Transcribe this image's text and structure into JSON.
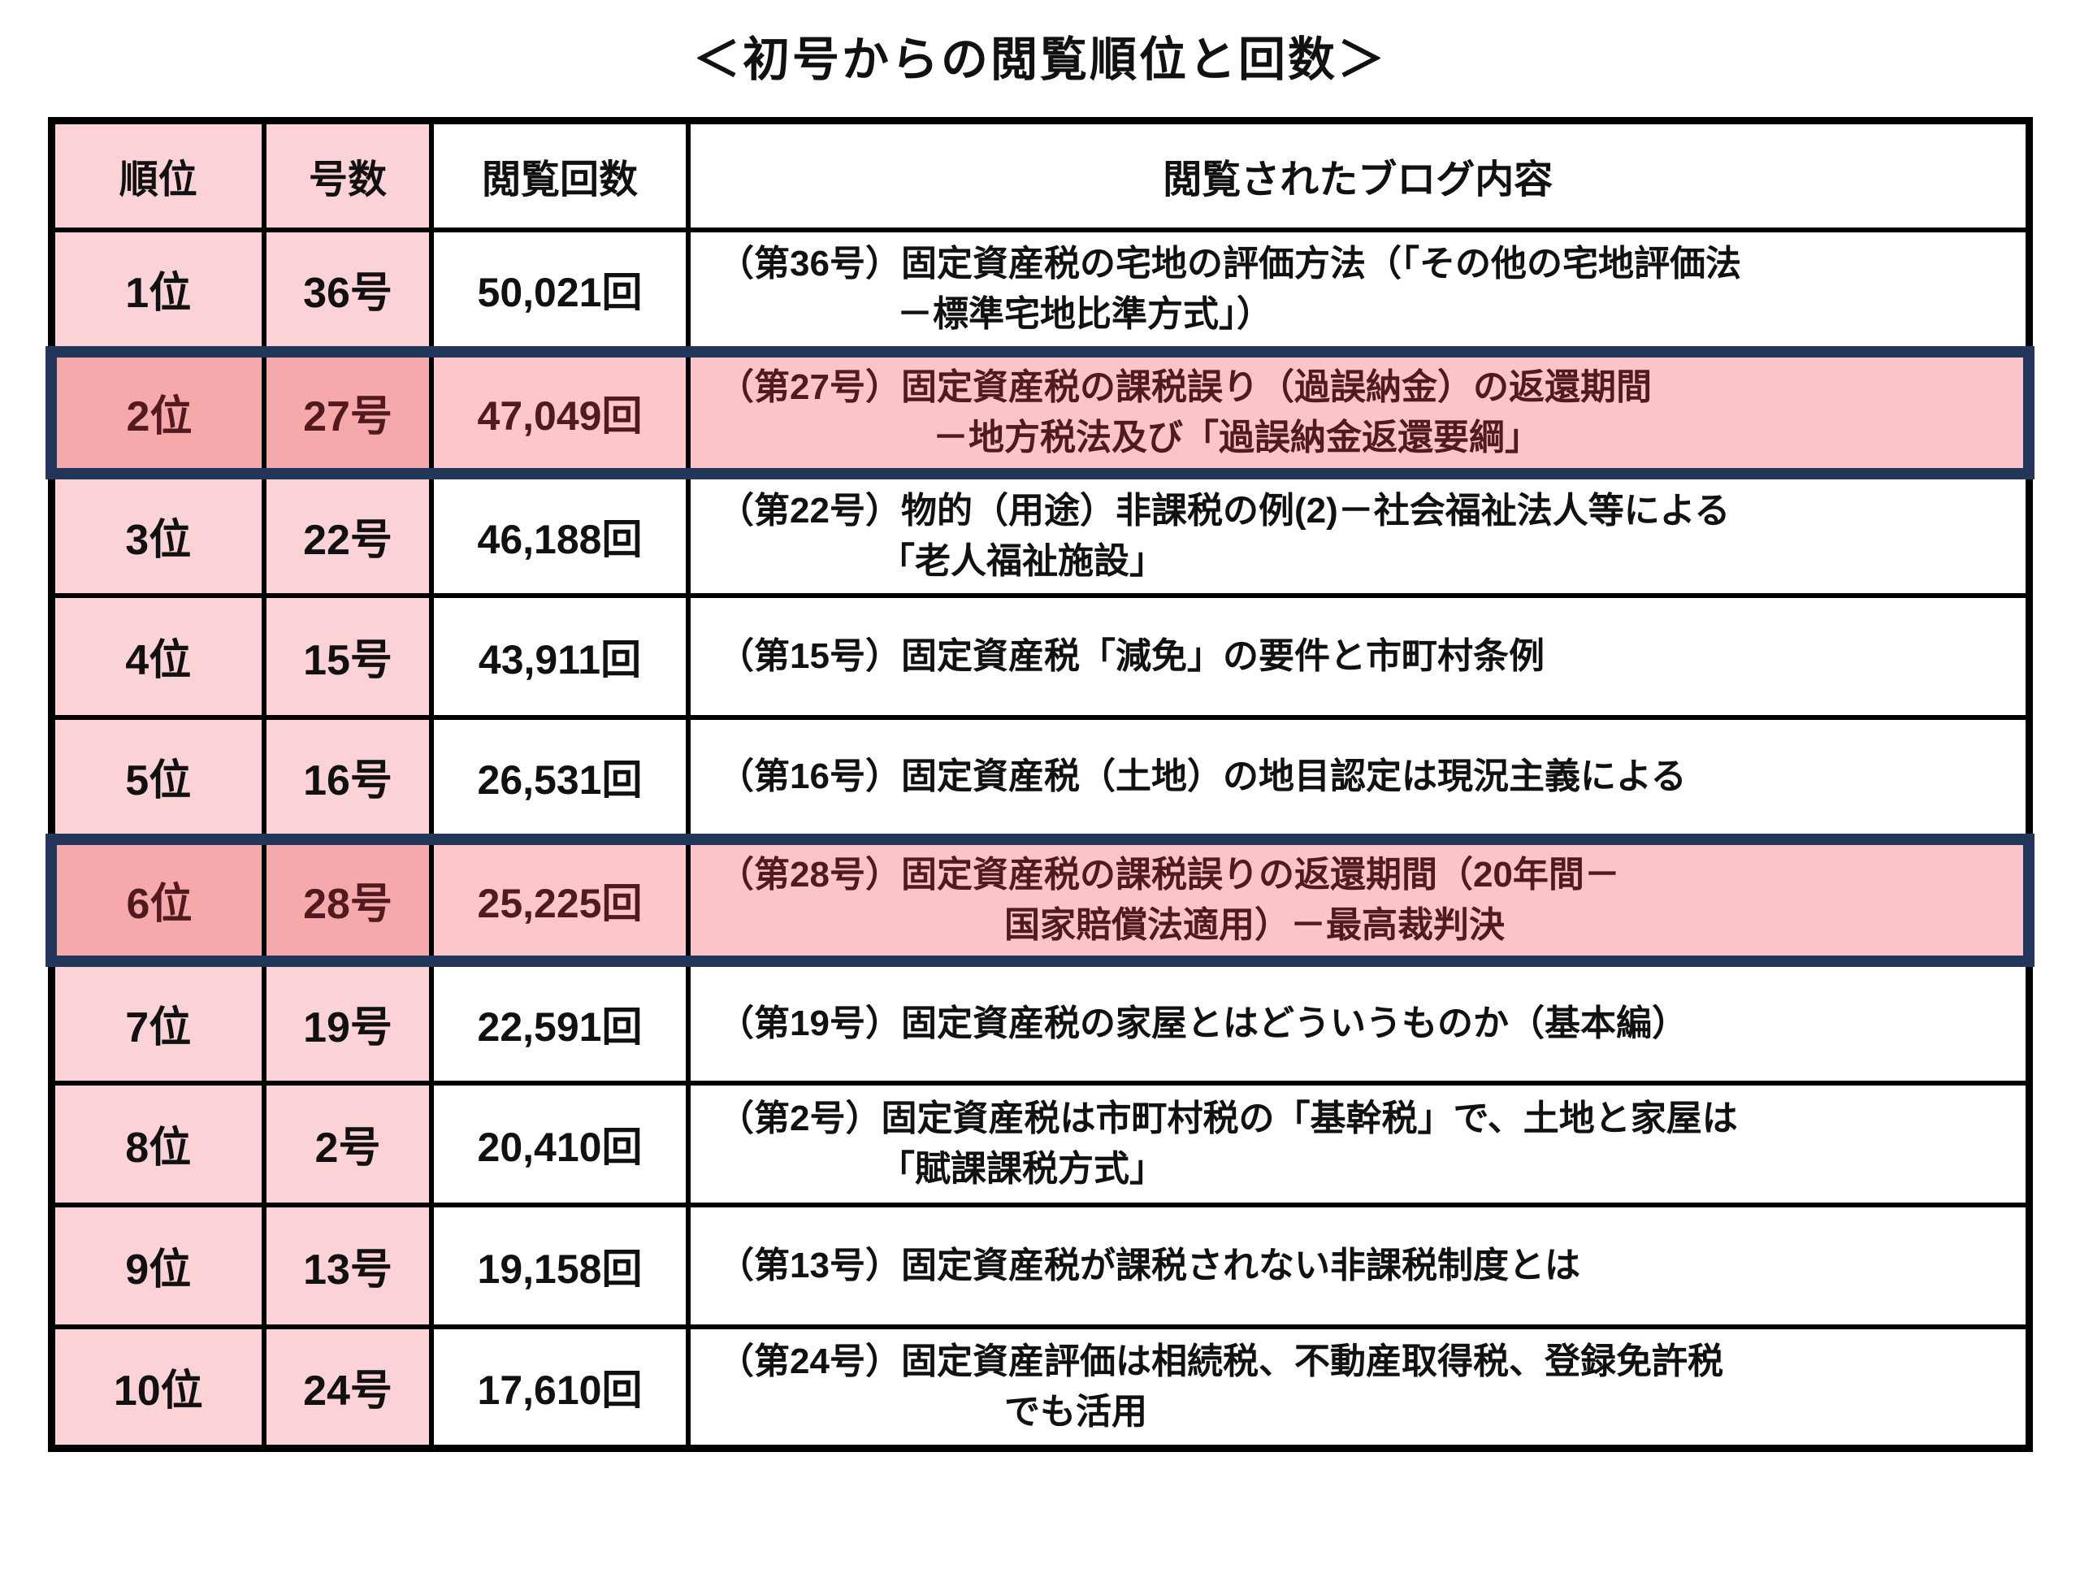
{
  "title": "＜初号からの閲覧順位と回数＞",
  "colors": {
    "pink_light": "#fbd3d6",
    "pink_strong": "#f6a9ab",
    "pink_highlight_bg": "#fac4c8",
    "highlight_border_navy": "#22365a",
    "highlight_text_maroon": "#521a1e",
    "grid_black": "#000000"
  },
  "table": {
    "headers": [
      "順位",
      "号数",
      "閲覧回数",
      "閲覧されたブログ内容"
    ],
    "rows": [
      {
        "rank": "1位",
        "issue": "36号",
        "count": "50,021回",
        "content": "（第36号）固定資産税の宅地の評価方法（「その他の宅地評価法\n　　　　　－標準宅地比準方式」）",
        "highlight": false
      },
      {
        "rank": "2位",
        "issue": "27号",
        "count": "47,049回",
        "content": "（第27号）固定資産税の課税誤り（過誤納金）の返還期間\n　　　　　　－地方税法及び「過誤納金返還要綱」",
        "highlight": true
      },
      {
        "rank": "3位",
        "issue": "22号",
        "count": "46,188回",
        "content": "（第22号）物的（用途）非課税の例(2)－社会福祉法人等による\n　　　　　「老人福祉施設」",
        "highlight": false
      },
      {
        "rank": "4位",
        "issue": "15号",
        "count": "43,911回",
        "content": "（第15号）固定資産税「減免」の要件と市町村条例",
        "highlight": false
      },
      {
        "rank": "5位",
        "issue": "16号",
        "count": "26,531回",
        "content": "（第16号）固定資産税（土地）の地目認定は現況主義による",
        "highlight": false
      },
      {
        "rank": "6位",
        "issue": "28号",
        "count": "25,225回",
        "content": "（第28号）固定資産税の課税誤りの返還期間（20年間－\n　　　　　　　　国家賠償法適用）－最高裁判決",
        "highlight": true
      },
      {
        "rank": "7位",
        "issue": "19号",
        "count": "22,591回",
        "content": "（第19号）固定資産税の家屋とはどういうものか（基本編）",
        "highlight": false
      },
      {
        "rank": "8位",
        "issue": "2号",
        "count": "20,410回",
        "content": "（第2号）固定資産税は市町村税の「基幹税」で、土地と家屋は\n　　　　　「賦課課税方式」",
        "highlight": false
      },
      {
        "rank": "9位",
        "issue": "13号",
        "count": "19,158回",
        "content": "（第13号）固定資産税が課税されない非課税制度とは",
        "highlight": false
      },
      {
        "rank": "10位",
        "issue": "24号",
        "count": "17,610回",
        "content": "（第24号）固定資産評価は相続税、不動産取得税、登録免許税\n　　　　　　　　でも活用",
        "highlight": false
      }
    ]
  }
}
